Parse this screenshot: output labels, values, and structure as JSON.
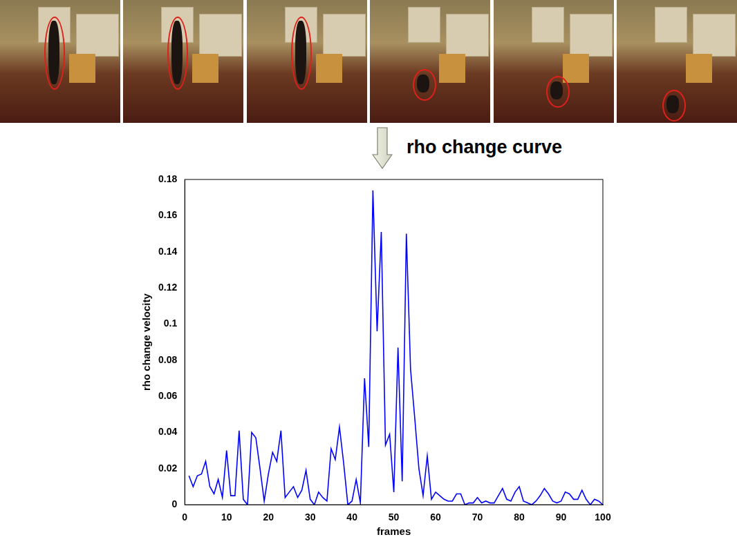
{
  "chart_data": {
    "type": "line",
    "annotations": [
      "rho change curve"
    ],
    "x_label": "frames",
    "y_label": "rho change velocity",
    "x": [
      1,
      2,
      3,
      4,
      5,
      6,
      7,
      8,
      9,
      10,
      11,
      12,
      13,
      14,
      15,
      16,
      17,
      18,
      19,
      20,
      21,
      22,
      23,
      24,
      25,
      26,
      27,
      28,
      29,
      30,
      31,
      32,
      33,
      34,
      35,
      36,
      37,
      38,
      39,
      40,
      41,
      42,
      43,
      44,
      45,
      46,
      47,
      48,
      49,
      50,
      51,
      52,
      53,
      54,
      55,
      56,
      57,
      58,
      59,
      60,
      61,
      62,
      63,
      64,
      65,
      66,
      67,
      68,
      69,
      70,
      71,
      72,
      73,
      74,
      75,
      76,
      77,
      78,
      79,
      80,
      81,
      82,
      83,
      84,
      85,
      86,
      87,
      88,
      89,
      90,
      91,
      92,
      93,
      94,
      95,
      96,
      97,
      98,
      99,
      100
    ],
    "values": [
      0.016,
      0.01,
      0.016,
      0.017,
      0.024,
      0.01,
      0.006,
      0.014,
      0.004,
      0.03,
      0.005,
      0.005,
      0.041,
      0.003,
      0.0,
      0.04,
      0.037,
      0.02,
      0.002,
      0.017,
      0.029,
      0.024,
      0.041,
      0.004,
      0.007,
      0.01,
      0.004,
      0.008,
      0.019,
      0.003,
      0.0,
      0.007,
      0.004,
      0.002,
      0.031,
      0.025,
      0.043,
      0.023,
      0.0,
      0.002,
      0.014,
      0.001,
      0.07,
      0.032,
      0.174,
      0.096,
      0.151,
      0.033,
      0.039,
      0.007,
      0.087,
      0.013,
      0.15,
      0.075,
      0.048,
      0.02,
      0.005,
      0.027,
      0.003,
      0.007,
      0.005,
      0.003,
      0.002,
      0.002,
      0.006,
      0.006,
      0.0,
      0.001,
      0.001,
      0.004,
      0.001,
      0.002,
      0.001,
      0.001,
      0.005,
      0.009,
      0.003,
      0.002,
      0.007,
      0.01,
      0.002,
      0.001,
      0.0,
      0.002,
      0.005,
      0.009,
      0.006,
      0.002,
      0.001,
      0.002,
      0.007,
      0.006,
      0.003,
      0.003,
      0.008,
      0.003,
      0.0,
      0.003,
      0.002,
      0.0
    ],
    "color": "#0000ff",
    "xlim": [
      0,
      100
    ],
    "xticks": [
      0,
      10,
      20,
      30,
      40,
      50,
      60,
      70,
      80,
      90,
      100
    ],
    "ylim": [
      0,
      0.18
    ],
    "yticks": [
      0,
      0.02,
      0.04,
      0.06,
      0.08,
      0.1,
      0.12,
      0.14,
      0.16,
      0.18
    ],
    "grid": false
  }
}
